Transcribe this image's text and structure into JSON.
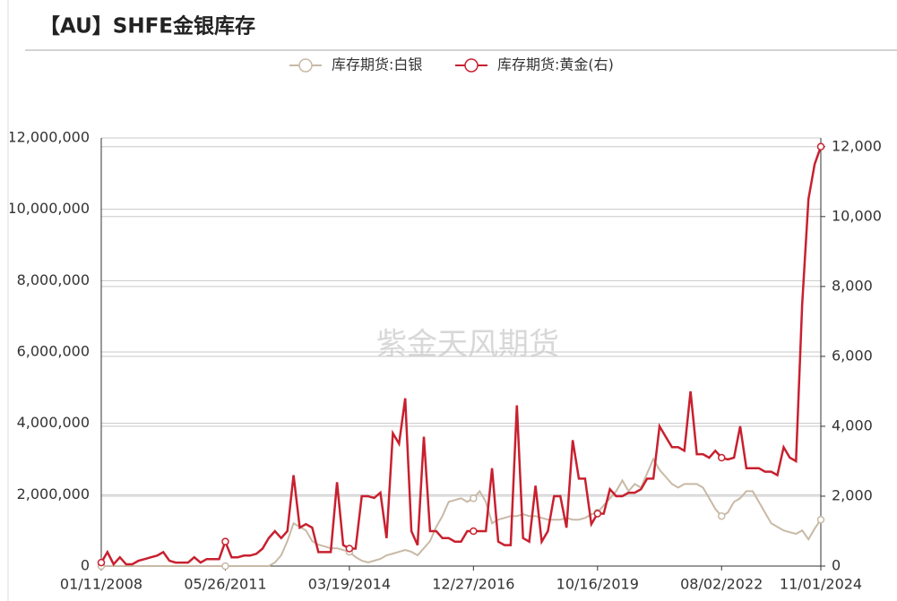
{
  "chart_data": {
    "type": "line",
    "title": "【AU】SHFE金银库存",
    "watermark": "紫金天风期货",
    "categories": [
      "01/11/2008",
      null,
      null,
      null,
      null,
      null,
      null,
      null,
      null,
      null,
      null,
      null,
      null,
      null,
      null,
      null,
      null,
      null,
      null,
      null,
      "05/26/2011",
      null,
      null,
      null,
      null,
      null,
      null,
      null,
      null,
      null,
      null,
      null,
      null,
      null,
      null,
      null,
      null,
      null,
      null,
      null,
      "03/19/2014",
      null,
      null,
      null,
      null,
      null,
      null,
      null,
      null,
      null,
      null,
      null,
      null,
      null,
      null,
      null,
      null,
      null,
      null,
      null,
      "12/27/2016",
      null,
      null,
      null,
      null,
      null,
      null,
      null,
      null,
      null,
      null,
      null,
      null,
      null,
      null,
      null,
      null,
      null,
      null,
      null,
      "10/16/2019",
      null,
      null,
      null,
      null,
      null,
      null,
      null,
      null,
      null,
      null,
      null,
      null,
      null,
      null,
      null,
      null,
      null,
      null,
      null,
      "08/02/2022",
      null,
      null,
      null,
      null,
      null,
      null,
      null,
      null,
      null,
      null,
      null,
      null,
      null,
      null,
      null,
      "11/01/2024"
    ],
    "series": [
      {
        "name": "库存期货:白银",
        "color": "#c8b9a6",
        "axis": "y",
        "values": [
          0,
          0,
          0,
          0,
          0,
          0,
          0,
          0,
          0,
          0,
          0,
          0,
          0,
          0,
          0,
          0,
          0,
          0,
          0,
          0,
          0,
          0,
          0,
          0,
          0,
          0,
          0,
          0,
          100000,
          300000,
          700000,
          1200000,
          1100000,
          1000000,
          700000,
          600000,
          550000,
          500000,
          500000,
          450000,
          400000,
          250000,
          150000,
          100000,
          150000,
          200000,
          300000,
          350000,
          400000,
          450000,
          400000,
          300000,
          500000,
          700000,
          1100000,
          1400000,
          1800000,
          1850000,
          1900000,
          1800000,
          1900000,
          2100000,
          1800000,
          1200000,
          1300000,
          1350000,
          1400000,
          1400000,
          1450000,
          1400000,
          1400000,
          1350000,
          1300000,
          1300000,
          1300000,
          1350000,
          1300000,
          1300000,
          1350000,
          1450000,
          1500000,
          1700000,
          1900000,
          2100000,
          2400000,
          2100000,
          2300000,
          2200000,
          2600000,
          3000000,
          2700000,
          2500000,
          2300000,
          2200000,
          2300000,
          2300000,
          2300000,
          2200000,
          1900000,
          1600000,
          1400000,
          1500000,
          1800000,
          1900000,
          2100000,
          2100000,
          1800000,
          1500000,
          1200000,
          1100000,
          1000000,
          950000,
          900000,
          1000000,
          750000,
          1050000,
          1300000
        ]
      },
      {
        "name": "库存期货:黄金(右)",
        "color": "#c8202f",
        "axis": "y2",
        "values": [
          100,
          400,
          50,
          250,
          50,
          50,
          150,
          200,
          250,
          300,
          400,
          150,
          100,
          100,
          100,
          250,
          100,
          200,
          200,
          200,
          700,
          250,
          250,
          300,
          300,
          350,
          500,
          800,
          1000,
          800,
          1000,
          2600,
          1100,
          1200,
          1100,
          400,
          400,
          400,
          2400,
          600,
          500,
          500,
          2000,
          2000,
          1950,
          2100,
          800,
          3800,
          3500,
          4800,
          1000,
          600,
          3700,
          1000,
          1000,
          800,
          800,
          700,
          700,
          1000,
          1000,
          1000,
          1000,
          2800,
          700,
          600,
          600,
          4600,
          800,
          700,
          2300,
          700,
          1000,
          2000,
          2000,
          1100,
          3600,
          2500,
          2500,
          1200,
          1500,
          1500,
          2200,
          2000,
          2000,
          2100,
          2100,
          2200,
          2500,
          2500,
          4000,
          3700,
          3400,
          3400,
          3300,
          5000,
          3200,
          3200,
          3100,
          3300,
          3100,
          3050,
          3100,
          4000,
          2800,
          2800,
          2800,
          2700,
          2700,
          2600,
          3400,
          3100,
          3000,
          7500,
          10500,
          11500,
          12000
        ]
      }
    ],
    "ylim": [
      0,
      12000000
    ],
    "yticks": [
      0,
      {
        "value": 2000000,
        "label": "2,000,000"
      },
      {
        "value": 4000000,
        "label": "4,000,000"
      },
      {
        "value": 6000000,
        "label": "6,000,000"
      },
      {
        "value": 8000000,
        "label": "8,000,000"
      },
      {
        "value": 10000000,
        "label": "10,000,000"
      },
      {
        "value": 12000000,
        "label": "12,000,000"
      }
    ],
    "y2lim": [
      0,
      12250
    ],
    "y2ticks": [
      0,
      {
        "value": 2000,
        "label": "2,000"
      },
      {
        "value": 4000,
        "label": "4,000"
      },
      {
        "value": 6000,
        "label": "6,000"
      },
      {
        "value": 8000,
        "label": "8,000"
      },
      {
        "value": 10000,
        "label": "10,000"
      },
      {
        "value": 12000,
        "label": "12,000"
      }
    ],
    "grid": true
  }
}
